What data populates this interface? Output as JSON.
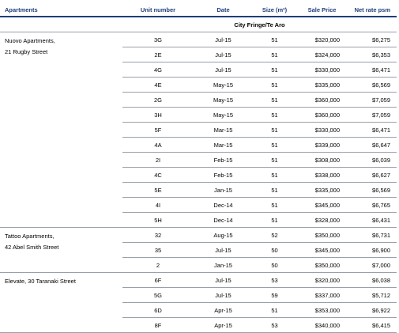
{
  "headers": {
    "apartments": "Apartments",
    "unit_number": "Unit number",
    "date": "Date",
    "size": "Size (m²)",
    "sale_price": "Sale Price",
    "net_rate": "Net rate psm"
  },
  "section_title": "City Fringe/Te Aro",
  "groups": [
    {
      "name_line1": "Nuovo Apartments,",
      "name_line2": "21 Rugby Street",
      "rows": [
        {
          "unit": "3G",
          "date": "Jul-15",
          "size": "51",
          "price": "$320,000",
          "rate": "$6,275"
        },
        {
          "unit": "2E",
          "date": "Jul-15",
          "size": "51",
          "price": "$324,000",
          "rate": "$6,353"
        },
        {
          "unit": "4G",
          "date": "Jul-15",
          "size": "51",
          "price": "$330,000",
          "rate": "$6,471"
        },
        {
          "unit": "4E",
          "date": "May-15",
          "size": "51",
          "price": "$335,000",
          "rate": "$6,569"
        },
        {
          "unit": "2G",
          "date": "May-15",
          "size": "51",
          "price": "$360,000",
          "rate": "$7,059"
        },
        {
          "unit": "3H",
          "date": "May-15",
          "size": "51",
          "price": "$360,000",
          "rate": "$7,059"
        },
        {
          "unit": "5F",
          "date": "Mar-15",
          "size": "51",
          "price": "$330,000",
          "rate": "$6,471"
        },
        {
          "unit": "4A",
          "date": "Mar-15",
          "size": "51",
          "price": "$339,000",
          "rate": "$6,647"
        },
        {
          "unit": "2I",
          "date": "Feb-15",
          "size": "51",
          "price": "$308,000",
          "rate": "$6,039"
        },
        {
          "unit": "4C",
          "date": "Feb-15",
          "size": "51",
          "price": "$338,000",
          "rate": "$6,627"
        },
        {
          "unit": "5E",
          "date": "Jan-15",
          "size": "51",
          "price": "$335,000",
          "rate": "$6,569"
        },
        {
          "unit": "4I",
          "date": "Dec-14",
          "size": "51",
          "price": "$345,000",
          "rate": "$6,765"
        },
        {
          "unit": "5H",
          "date": "Dec-14",
          "size": "51",
          "price": "$328,000",
          "rate": "$6,431"
        }
      ]
    },
    {
      "name_line1": "Tattoo Apartments,",
      "name_line2": "42 Abel Smith Street",
      "rows": [
        {
          "unit": "32",
          "date": "Aug-15",
          "size": "52",
          "price": "$350,000",
          "rate": "$6,731"
        },
        {
          "unit": "35",
          "date": "Jul-15",
          "size": "50",
          "price": "$345,000",
          "rate": "$6,900"
        },
        {
          "unit": "2",
          "date": "Jan-15",
          "size": "50",
          "price": "$350,000",
          "rate": "$7,000"
        }
      ]
    },
    {
      "name_line1": "Elevate, 30 Taranaki Street",
      "name_line2": "",
      "rows": [
        {
          "unit": "6F",
          "date": "Jul-15",
          "size": "53",
          "price": "$320,000",
          "rate": "$6,038"
        },
        {
          "unit": "5G",
          "date": "Jul-15",
          "size": "59",
          "price": "$337,000",
          "rate": "$5,712"
        },
        {
          "unit": "6D",
          "date": "Apr-15",
          "size": "51",
          "price": "$353,000",
          "rate": "$6,922"
        },
        {
          "unit": "8F",
          "date": "Apr-15",
          "size": "53",
          "price": "$340,000",
          "rate": "$6,415"
        }
      ]
    }
  ]
}
